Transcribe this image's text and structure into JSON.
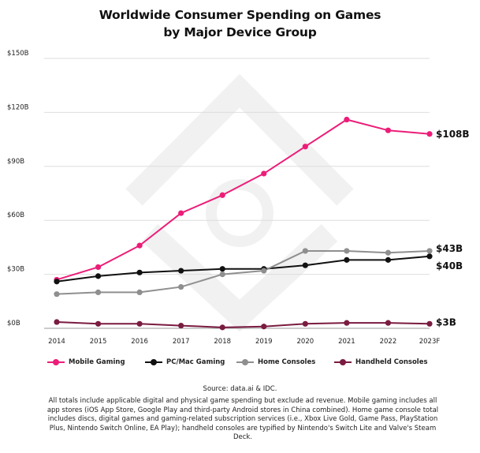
{
  "colors": {
    "mobile": "#ec1d78",
    "pc": "#111111",
    "console": "#8f8f8f",
    "handheld": "#7a1b40",
    "grid": "#dedede",
    "watermark": "#f1f1f1"
  },
  "chart_data": {
    "type": "line",
    "title": [
      "Worldwide Consumer Spending on Games",
      "by Major Device Group"
    ],
    "categories": [
      "2014",
      "2015",
      "2016",
      "2017",
      "2018",
      "2019",
      "2020",
      "2021",
      "2022",
      "2023F"
    ],
    "y_ticks": [
      0,
      30,
      60,
      90,
      120,
      150
    ],
    "y_tick_labels": [
      "$0B",
      "$30B",
      "$60B",
      "$90B",
      "$120B",
      "$150B"
    ],
    "ylim": [
      0,
      150
    ],
    "grid": "horizontal",
    "legend_position": "bottom",
    "series": [
      {
        "key": "mobile",
        "name": "Mobile Gaming",
        "values": [
          27,
          34,
          46,
          64,
          74,
          86,
          101,
          116,
          110,
          108
        ],
        "end_label": "$108B"
      },
      {
        "key": "pc",
        "name": "PC/Mac Gaming",
        "values": [
          26,
          29,
          31,
          32,
          33,
          33,
          35,
          38,
          38,
          40
        ],
        "end_label": "$40B"
      },
      {
        "key": "console",
        "name": "Home Consoles",
        "values": [
          19,
          20,
          20,
          23,
          30,
          32,
          43,
          43,
          42,
          43
        ],
        "end_label": "$43B"
      },
      {
        "key": "handheld",
        "name": "Handheld Consoles",
        "values": [
          3.5,
          2.5,
          2.5,
          1.5,
          0.5,
          1,
          2.5,
          3,
          3,
          2.5
        ],
        "end_label": "$3B"
      }
    ]
  },
  "source": "Source: data.ai & IDC.",
  "footnote": "All totals include applicable digital and physical game spending but exclude ad revenue. Mobile gaming includes all app stores (iOS App Store, Google Play and third-party Android stores in China combined). Home game console total includes discs, digital games and gaming-related subscription services (i.e., Xbox Live Gold, Game Pass, PlayStation Plus, Nintendo Switch Online, EA Play); handheld consoles are typified by Nintendo's Switch Lite and Valve's Steam Deck."
}
